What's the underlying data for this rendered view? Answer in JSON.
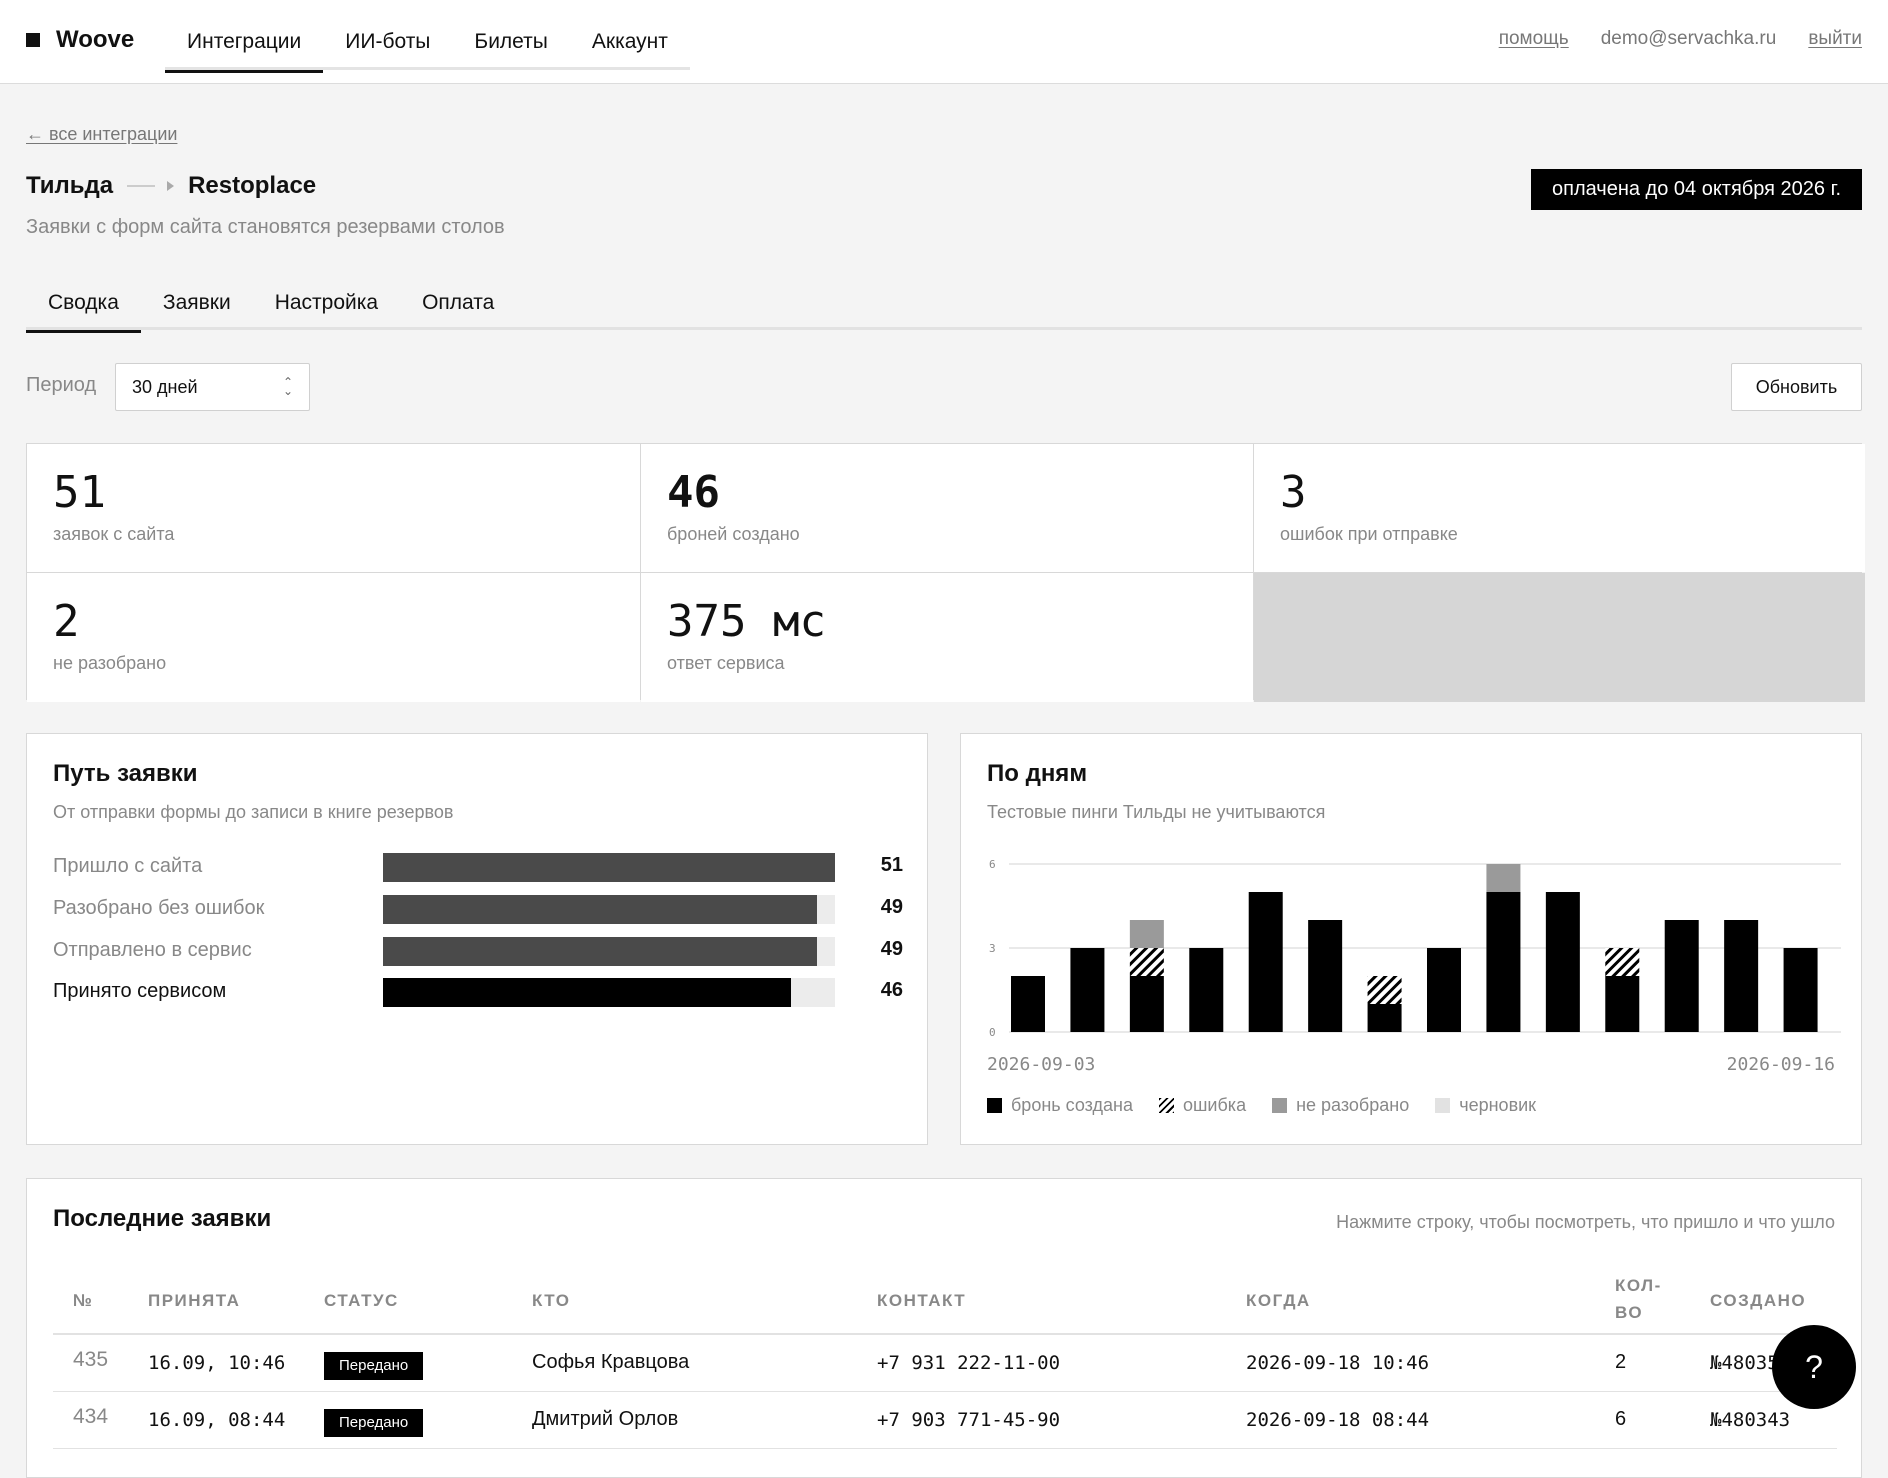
{
  "app": {
    "name": "Woove"
  },
  "nav": {
    "tabs": [
      "Интеграции",
      "ИИ-боты",
      "Билеты",
      "Аккаунт"
    ],
    "active": 0
  },
  "topbar": {
    "help": "помощь",
    "email": "demo@servachka.ru",
    "logout": "выйти"
  },
  "breadcrumb": {
    "back": "← все интеграции"
  },
  "integration": {
    "source": "Тильда",
    "target": "Restoplace",
    "description": "Заявки с форм сайта становятся резервами столов",
    "paid_until": "оплачена до 04 октября 2026 г."
  },
  "tabs": {
    "items": [
      "Сводка",
      "Заявки",
      "Настройка",
      "Оплата"
    ],
    "active": 0
  },
  "period": {
    "label": "Период",
    "value": "30 дней",
    "refresh": "Обновить"
  },
  "stats": [
    {
      "value": "51",
      "label": "заявок с сайта"
    },
    {
      "value": "46",
      "label": "броней создано"
    },
    {
      "value": "3",
      "label": "ошибок при отправке"
    },
    {
      "value": "2",
      "label": "не разобрано"
    },
    {
      "value": "375 мс",
      "label": "ответ сервиса"
    }
  ],
  "funnel": {
    "title": "Путь заявки",
    "subtitle": "От отправки формы до записи в книге резервов",
    "max": 51,
    "steps": [
      {
        "label": "Пришло с сайта",
        "value": 51
      },
      {
        "label": "Разобрано без ошибок",
        "value": 49
      },
      {
        "label": "Отправлено в сервис",
        "value": 49
      },
      {
        "label": "Принято сервисом",
        "value": 46
      }
    ]
  },
  "by_days": {
    "title": "По дням",
    "subtitle": "Тестовые пинги Тильды не учитываются",
    "x_start": "2026-09-03",
    "x_end": "2026-09-16",
    "legend": [
      "бронь создана",
      "ошибка",
      "не разобрано",
      "черновик"
    ]
  },
  "chart_data": {
    "type": "bar",
    "stacked": true,
    "x": [
      "2026-09-03",
      "2026-09-04",
      "2026-09-05",
      "2026-09-06",
      "2026-09-07",
      "2026-09-08",
      "2026-09-09",
      "2026-09-10",
      "2026-09-11",
      "2026-09-12",
      "2026-09-13",
      "2026-09-14",
      "2026-09-15",
      "2026-09-16"
    ],
    "ylim": [
      0,
      6
    ],
    "y_ticks": [
      "0",
      "3",
      "6"
    ],
    "grid": true,
    "legend_position": "bottom-left",
    "series": [
      {
        "name": "бронь создана",
        "color": "#000000",
        "values": [
          2,
          3,
          2,
          3,
          5,
          4,
          1,
          3,
          5,
          5,
          2,
          4,
          4,
          3
        ]
      },
      {
        "name": "ошибка",
        "color": "hatch",
        "values": [
          0,
          0,
          1,
          0,
          0,
          0,
          1,
          0,
          0,
          0,
          1,
          0,
          0,
          0
        ]
      },
      {
        "name": "не разобрано",
        "color": "#9a9a9a",
        "values": [
          0,
          0,
          1,
          0,
          0,
          0,
          0,
          0,
          1,
          0,
          0,
          0,
          0,
          0
        ]
      },
      {
        "name": "черновик",
        "color": "#e2e2e2",
        "values": [
          0,
          0,
          0,
          0,
          0,
          0,
          0,
          0,
          0,
          0,
          0,
          0,
          0,
          0
        ]
      }
    ]
  },
  "recent": {
    "title": "Последние заявки",
    "hint": "Нажмите строку, чтобы посмотреть, что пришло и что ушло",
    "columns": [
      "№",
      "ПРИНЯТА",
      "СТАТУС",
      "КТО",
      "КОНТАКТ",
      "КОГДА",
      "КОЛ-\nВО",
      "СОЗДАНО"
    ],
    "rows": [
      {
        "num": "435",
        "accepted": "16.09, 10:46",
        "status": "Передано",
        "who": "Софья Кравцова",
        "contact": "+7 931 222-11-00",
        "when": "2026-09-18 10:46",
        "qty": "2",
        "created": "№480354"
      },
      {
        "num": "434",
        "accepted": "16.09, 08:44",
        "status": "Передано",
        "who": "Дмитрий Орлов",
        "contact": "+7 903 771-45-90",
        "when": "2026-09-18 08:44",
        "qty": "6",
        "created": "№480343"
      }
    ]
  },
  "help_button": "?"
}
